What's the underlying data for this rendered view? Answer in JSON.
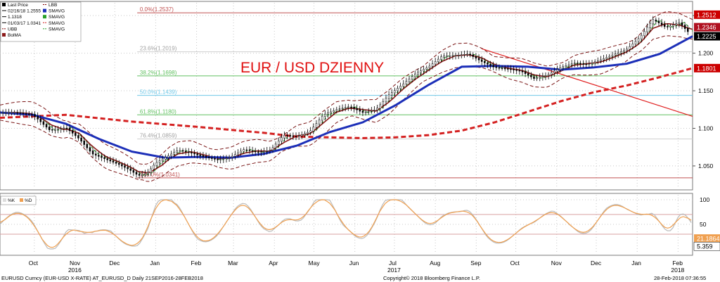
{
  "title": "EUR / USD DZIENNY",
  "legend_main": [
    {
      "label": "Last Price",
      "color": "#000000",
      "type": "box"
    },
    {
      "label": "02/16/18 1.2555",
      "color": "#000000",
      "type": "hi"
    },
    {
      "label": "1.1318",
      "color": "#000000",
      "type": "line"
    },
    {
      "label": "01/03/17 1.0341",
      "color": "#000000",
      "type": "lo"
    },
    {
      "label": "UBB",
      "color": "#800000",
      "type": "dash"
    },
    {
      "label": "BolMA",
      "color": "#8b1a1a",
      "type": "box"
    },
    {
      "label": "LBB",
      "color": "#800000",
      "type": "dash"
    },
    {
      "label": "SMAVG",
      "color": "#1c2fb8",
      "type": "box"
    },
    {
      "label": "SMAVG",
      "color": "#2aa02a",
      "type": "box"
    },
    {
      "label": "SMAVG",
      "color": "#d42020",
      "type": "dash"
    },
    {
      "label": "SMAVG",
      "color": "#2aa02a",
      "type": "dash"
    }
  ],
  "legend_osc": [
    {
      "label": "%K",
      "color": "#dddddd"
    },
    {
      "label": "%D",
      "color": "#f0a050"
    }
  ],
  "fib_levels": [
    {
      "label": "0.0%(1.2537)",
      "value": 1.2537,
      "color": "#c05050"
    },
    {
      "label": "23.6%(1.2019)",
      "value": 1.2019,
      "color": "#cfcfcf"
    },
    {
      "label": "38.2%(1.1698)",
      "value": 1.1698,
      "color": "#60c060"
    },
    {
      "label": "50.0%(1.1439)",
      "value": 1.1439,
      "color": "#70c8e8"
    },
    {
      "label": "61.8%(1.1180)",
      "value": 1.118,
      "color": "#60c060"
    },
    {
      "label": "76.4%(1.0859)",
      "value": 1.0859,
      "color": "#cfcfcf"
    },
    {
      "label": "100.0%(1.0341)",
      "value": 1.0341,
      "color": "#c05050"
    }
  ],
  "y_axis_ticks": [
    "1.250",
    "1.200",
    "1.150",
    "1.100",
    "1.050"
  ],
  "price_tags": [
    {
      "label": "1.2512",
      "value": 1.2512,
      "color": "#cc0000"
    },
    {
      "label": "1.2346",
      "value": 1.2346,
      "color": "#b01020"
    },
    {
      "label": "1.2225",
      "value": 1.2225,
      "color": "#000000"
    },
    {
      "label": "1.1801",
      "value": 1.1801,
      "color": "#cc0000"
    }
  ],
  "osc_axis_ticks": [
    "100",
    "50"
  ],
  "osc_tags": [
    {
      "label": "21.1864",
      "value": 21.1864,
      "color": "#f0a050"
    },
    {
      "label": "5.359",
      "value": 5.359,
      "color": "#ffffff"
    }
  ],
  "x_axis": {
    "months": [
      {
        "label": "Oct",
        "day": 26
      },
      {
        "label": "Nov",
        "day": 57
      },
      {
        "label": "Dec",
        "day": 87
      },
      {
        "label": "Jan",
        "day": 118
      },
      {
        "label": "Feb",
        "day": 149
      },
      {
        "label": "Mar",
        "day": 177
      },
      {
        "label": "Apr",
        "day": 208
      },
      {
        "label": "May",
        "day": 238
      },
      {
        "label": "Jun",
        "day": 269
      },
      {
        "label": "Jul",
        "day": 299
      },
      {
        "label": "Aug",
        "day": 330
      },
      {
        "label": "Sep",
        "day": 361
      },
      {
        "label": "Oct",
        "day": 391
      },
      {
        "label": "Nov",
        "day": 422
      },
      {
        "label": "Dec",
        "day": 452
      },
      {
        "label": "Jan",
        "day": 483
      },
      {
        "label": "Feb",
        "day": 514
      }
    ],
    "years": [
      {
        "label": "2016",
        "day": 57
      },
      {
        "label": "2017",
        "day": 299
      },
      {
        "label": "2018",
        "day": 514
      }
    ]
  },
  "footer": {
    "left": "EURUSD Curncy (EUR-USD X-RATE) AT_EURUSD_D  Daily 21SEP2016-28FEB2018",
    "center": "Copyright© 2018 Bloomberg Finance L.P.",
    "right": "28-Feb-2018 07:36:55"
  },
  "chart_data": {
    "type": "line",
    "title": "EUR / USD DZIENNY",
    "x_unit": "days since 21SEP2016",
    "xlim": [
      0,
      525
    ],
    "ylim": [
      1.02,
      1.267
    ],
    "series": [
      {
        "name": "Last Price",
        "color": "#000000",
        "x": [
          0,
          12,
          25,
          38,
          50,
          60,
          70,
          80,
          90,
          98,
          105,
          112,
          118,
          125,
          135,
          145,
          155,
          165,
          175,
          185,
          195,
          205,
          215,
          225,
          235,
          245,
          255,
          265,
          275,
          285,
          295,
          305,
          315,
          325,
          335,
          345,
          355,
          365,
          375,
          385,
          395,
          405,
          415,
          425,
          435,
          445,
          455,
          465,
          475,
          485,
          495,
          505,
          515,
          520,
          525
        ],
        "y": [
          1.121,
          1.121,
          1.118,
          1.097,
          1.101,
          1.086,
          1.066,
          1.059,
          1.052,
          1.045,
          1.037,
          1.041,
          1.054,
          1.061,
          1.071,
          1.067,
          1.062,
          1.058,
          1.062,
          1.072,
          1.068,
          1.071,
          1.091,
          1.089,
          1.096,
          1.118,
          1.125,
          1.129,
          1.121,
          1.125,
          1.145,
          1.158,
          1.173,
          1.182,
          1.196,
          1.197,
          1.199,
          1.189,
          1.181,
          1.179,
          1.176,
          1.166,
          1.171,
          1.181,
          1.187,
          1.185,
          1.191,
          1.198,
          1.205,
          1.221,
          1.245,
          1.234,
          1.241,
          1.231,
          1.2225
        ]
      },
      {
        "name": "SMAVG",
        "color": "#1c2fb8",
        "x": [
          0,
          25,
          50,
          75,
          100,
          125,
          150,
          175,
          200,
          225,
          250,
          275,
          300,
          325,
          350,
          375,
          400,
          425,
          450,
          475,
          500,
          525
        ],
        "y": [
          1.121,
          1.118,
          1.106,
          1.086,
          1.069,
          1.061,
          1.062,
          1.061,
          1.066,
          1.077,
          1.095,
          1.108,
          1.131,
          1.158,
          1.182,
          1.183,
          1.182,
          1.178,
          1.181,
          1.186,
          1.199,
          1.2225
        ]
      },
      {
        "name": "SMAVG",
        "color": "#d42020",
        "x": [
          0,
          50,
          100,
          150,
          200,
          225,
          250,
          275,
          300,
          325,
          350,
          375,
          400,
          425,
          450,
          475,
          500,
          525
        ],
        "y": [
          1.114,
          1.118,
          1.109,
          1.102,
          1.094,
          1.089,
          1.088,
          1.087,
          1.088,
          1.091,
          1.097,
          1.108,
          1.122,
          1.136,
          1.148,
          1.157,
          1.168,
          1.1801
        ]
      }
    ]
  }
}
